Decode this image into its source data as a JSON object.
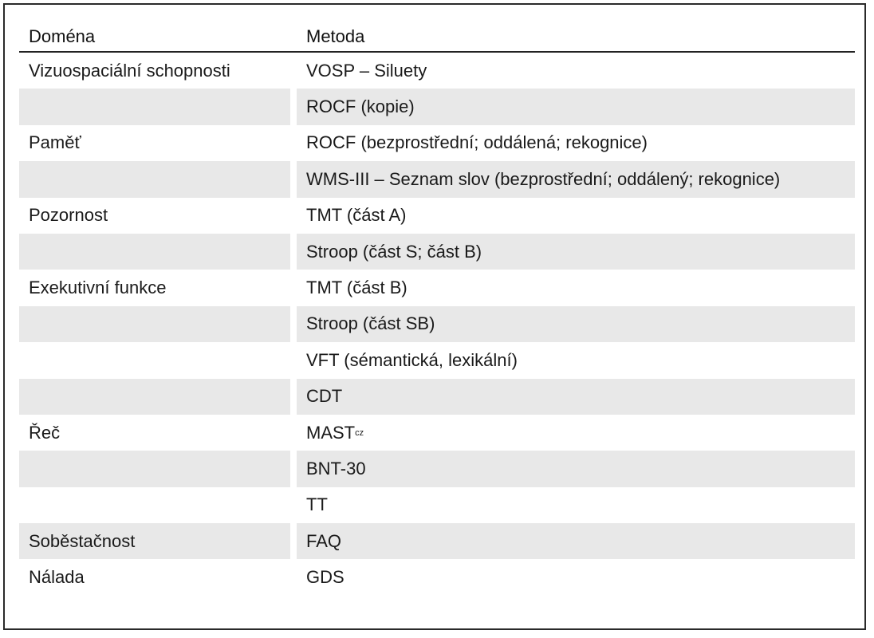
{
  "table": {
    "header": {
      "domain": "Doména",
      "method": "Metoda"
    },
    "rows": [
      {
        "domain": "Vizuospaciální schopnosti",
        "method": "VOSP – Siluety"
      },
      {
        "domain": "",
        "method": "ROCF (kopie)"
      },
      {
        "domain": "Paměť",
        "method": "ROCF (bezprostřední; oddálená; rekognice)"
      },
      {
        "domain": "",
        "method": "WMS-III – Seznam slov (bezprostřední; oddálený; rekognice)"
      },
      {
        "domain": "Pozornost",
        "method": "TMT (část A)"
      },
      {
        "domain": "",
        "method": "Stroop (část S; část B)"
      },
      {
        "domain": "Exekutivní funkce",
        "method": "TMT (část B)"
      },
      {
        "domain": "",
        "method": "Stroop (část SB)"
      },
      {
        "domain": "",
        "method": "VFT (sémantická, lexikální)"
      },
      {
        "domain": "",
        "method": "CDT"
      },
      {
        "domain": "Řeč",
        "method": "MAST",
        "method_sub": "cz"
      },
      {
        "domain": "",
        "method": "BNT-30"
      },
      {
        "domain": "",
        "method": "TT"
      },
      {
        "domain": "Soběstačnost",
        "method": "FAQ"
      },
      {
        "domain": "Nálada",
        "method": "GDS"
      }
    ]
  }
}
